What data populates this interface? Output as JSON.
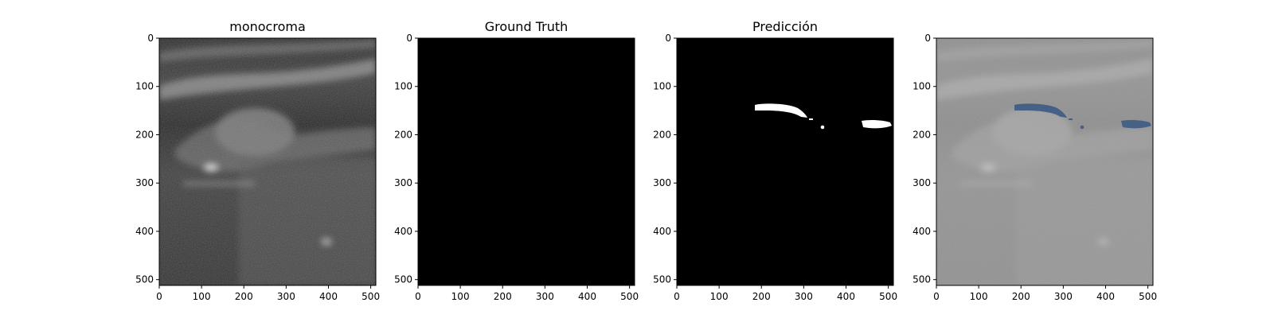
{
  "figure": {
    "panels": [
      {
        "title": "monocroma",
        "image": "ultrasound-grayscale"
      },
      {
        "title": "Ground Truth",
        "image": "mask-empty"
      },
      {
        "title": "Predicción",
        "image": "mask-prediction"
      },
      {
        "title": "",
        "image": "overlay"
      }
    ],
    "axes": {
      "x_ticks": [
        0,
        100,
        200,
        300,
        400,
        500
      ],
      "y_ticks": [
        0,
        100,
        200,
        300,
        400,
        500
      ],
      "x_range": [
        0,
        512
      ],
      "y_range": [
        0,
        512
      ]
    },
    "colors": {
      "mask_background": "#000000",
      "mask_foreground": "#ffffff",
      "overlay_mask": "#3d5a84"
    }
  }
}
